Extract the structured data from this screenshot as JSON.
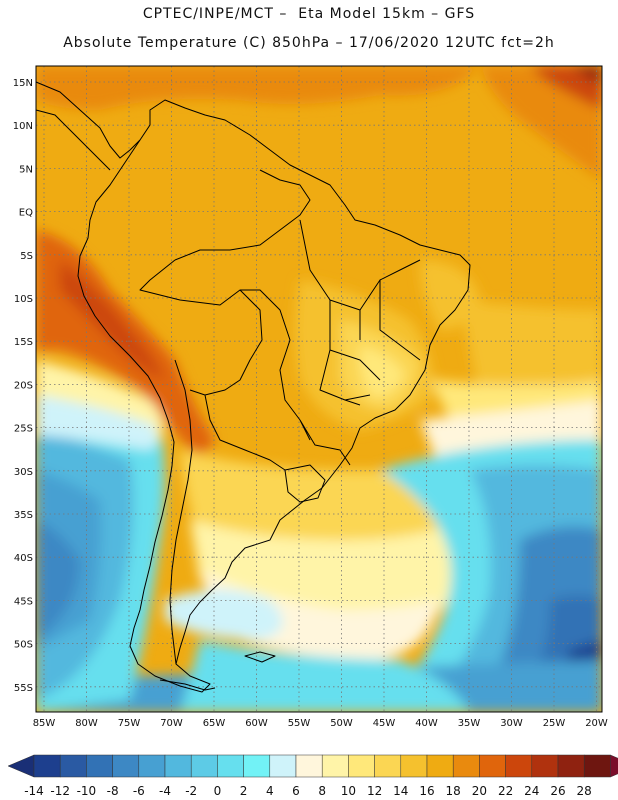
{
  "header": {
    "line1": "CPTEC/INPE/MCT –  Eta Model 15km – GFS",
    "line2": "Absolute Temperature (C) 850hPa – 17/06/2020 12UTC fct=2h"
  },
  "map": {
    "lat_labels": [
      "15N",
      "10N",
      "5N",
      "EQ",
      "5S",
      "10S",
      "15S",
      "20S",
      "25S",
      "30S",
      "35S",
      "40S",
      "45S",
      "50S",
      "55S"
    ],
    "lon_labels": [
      "85W",
      "80W",
      "75W",
      "70W",
      "65W",
      "60W",
      "55W",
      "50W",
      "45W",
      "40W",
      "35W",
      "30W",
      "25W",
      "20W"
    ]
  },
  "colorbar": {
    "labels": [
      "-14",
      "-12",
      "-10",
      "-8",
      "-6",
      "-4",
      "-2",
      "0",
      "2",
      "4",
      "6",
      "8",
      "10",
      "12",
      "14",
      "16",
      "18",
      "20",
      "22",
      "24",
      "26",
      "28"
    ],
    "colors": [
      "#1d3f8e",
      "#2a5aa3",
      "#3272b5",
      "#3d88c4",
      "#47a0d2",
      "#52b8de",
      "#5dcbe6",
      "#66dfee",
      "#72f2f6",
      "#cff3fa",
      "#fff6dc",
      "#fff4a8",
      "#ffe87a",
      "#fbd653",
      "#f5c12e",
      "#efab12",
      "#e98a0e",
      "#e0650c",
      "#cc460c",
      "#b0320e",
      "#8f2210",
      "#6e1610"
    ],
    "low_color": "#1a2f76",
    "high_color": "#7a0d2a"
  }
}
